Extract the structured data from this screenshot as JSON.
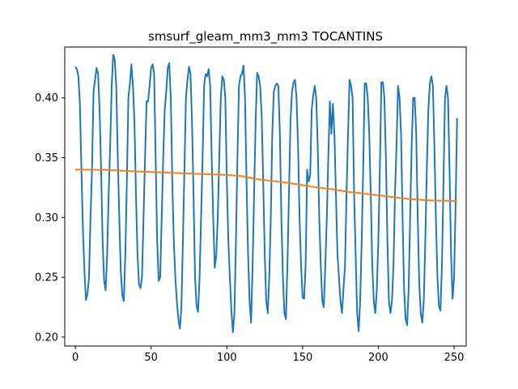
{
  "chart_data": {
    "type": "line",
    "title": "smsurf_gleam_mm3_mm3 TOCANTINS",
    "xlabel": "",
    "ylabel": "",
    "xlim": [
      -7,
      258
    ],
    "ylim": [
      0.1925,
      0.4425
    ],
    "x_ticks": [
      0,
      50,
      100,
      150,
      200,
      250
    ],
    "x_tick_labels": [
      "0",
      "50",
      "100",
      "150",
      "200",
      "250"
    ],
    "y_ticks": [
      0.2,
      0.25,
      0.3,
      0.35,
      0.4
    ],
    "y_tick_labels": [
      "0.20",
      "0.25",
      "0.30",
      "0.35",
      "0.40"
    ],
    "grid": false,
    "series": [
      {
        "color": "#1f77b4",
        "points": [
          [
            0,
            0.426
          ],
          [
            1,
            0.424
          ],
          [
            2,
            0.418
          ],
          [
            3,
            0.395
          ],
          [
            4,
            0.34
          ],
          [
            5,
            0.29
          ],
          [
            6,
            0.255
          ],
          [
            7,
            0.231
          ],
          [
            8,
            0.236
          ],
          [
            9,
            0.25
          ],
          [
            10,
            0.3
          ],
          [
            11,
            0.34
          ],
          [
            12,
            0.405
          ],
          [
            13,
            0.415
          ],
          [
            14,
            0.425
          ],
          [
            15,
            0.42
          ],
          [
            16,
            0.39
          ],
          [
            17,
            0.34
          ],
          [
            18,
            0.28
          ],
          [
            19,
            0.247
          ],
          [
            20,
            0.239
          ],
          [
            21,
            0.27
          ],
          [
            22,
            0.32
          ],
          [
            23,
            0.36
          ],
          [
            24,
            0.41
          ],
          [
            25,
            0.436
          ],
          [
            26,
            0.432
          ],
          [
            27,
            0.41
          ],
          [
            28,
            0.35
          ],
          [
            29,
            0.3
          ],
          [
            30,
            0.255
          ],
          [
            31,
            0.235
          ],
          [
            32,
            0.23
          ],
          [
            33,
            0.27
          ],
          [
            34,
            0.33
          ],
          [
            35,
            0.4
          ],
          [
            36,
            0.412
          ],
          [
            37,
            0.428
          ],
          [
            38,
            0.41
          ],
          [
            39,
            0.38
          ],
          [
            40,
            0.32
          ],
          [
            41,
            0.27
          ],
          [
            42,
            0.244
          ],
          [
            43,
            0.241
          ],
          [
            44,
            0.25
          ],
          [
            45,
            0.3
          ],
          [
            46,
            0.35
          ],
          [
            47,
            0.397
          ],
          [
            48,
            0.397
          ],
          [
            49,
            0.41
          ],
          [
            50,
            0.425
          ],
          [
            51,
            0.428
          ],
          [
            52,
            0.42
          ],
          [
            53,
            0.35
          ],
          [
            54,
            0.28
          ],
          [
            55,
            0.247
          ],
          [
            56,
            0.25
          ],
          [
            57,
            0.3
          ],
          [
            58,
            0.35
          ],
          [
            59,
            0.39
          ],
          [
            60,
            0.405
          ],
          [
            61,
            0.425
          ],
          [
            62,
            0.429
          ],
          [
            63,
            0.4
          ],
          [
            64,
            0.33
          ],
          [
            65,
            0.28
          ],
          [
            66,
            0.25
          ],
          [
            67,
            0.23
          ],
          [
            68,
            0.215
          ],
          [
            69,
            0.207
          ],
          [
            70,
            0.225
          ],
          [
            71,
            0.28
          ],
          [
            72,
            0.34
          ],
          [
            73,
            0.4
          ],
          [
            74,
            0.415
          ],
          [
            75,
            0.426
          ],
          [
            76,
            0.42
          ],
          [
            77,
            0.38
          ],
          [
            78,
            0.32
          ],
          [
            79,
            0.25
          ],
          [
            80,
            0.226
          ],
          [
            81,
            0.221
          ],
          [
            82,
            0.25
          ],
          [
            83,
            0.3
          ],
          [
            84,
            0.35
          ],
          [
            85,
            0.41
          ],
          [
            86,
            0.42
          ],
          [
            87,
            0.418
          ],
          [
            88,
            0.424
          ],
          [
            89,
            0.41
          ],
          [
            90,
            0.35
          ],
          [
            91,
            0.3
          ],
          [
            92,
            0.258
          ],
          [
            93,
            0.268
          ],
          [
            94,
            0.3
          ],
          [
            95,
            0.35
          ],
          [
            96,
            0.4
          ],
          [
            97,
            0.418
          ],
          [
            98,
            0.415
          ],
          [
            99,
            0.4
          ],
          [
            100,
            0.33
          ],
          [
            101,
            0.28
          ],
          [
            102,
            0.25
          ],
          [
            103,
            0.222
          ],
          [
            104,
            0.204
          ],
          [
            105,
            0.22
          ],
          [
            106,
            0.28
          ],
          [
            107,
            0.35
          ],
          [
            108,
            0.41
          ],
          [
            109,
            0.418
          ],
          [
            110,
            0.42
          ],
          [
            111,
            0.427
          ],
          [
            112,
            0.4
          ],
          [
            113,
            0.33
          ],
          [
            114,
            0.27
          ],
          [
            115,
            0.23
          ],
          [
            116,
            0.212
          ],
          [
            117,
            0.26
          ],
          [
            118,
            0.32
          ],
          [
            119,
            0.38
          ],
          [
            120,
            0.421
          ],
          [
            121,
            0.418
          ],
          [
            122,
            0.41
          ],
          [
            123,
            0.385
          ],
          [
            124,
            0.33
          ],
          [
            125,
            0.27
          ],
          [
            126,
            0.23
          ],
          [
            127,
            0.22
          ],
          [
            128,
            0.25
          ],
          [
            129,
            0.3
          ],
          [
            130,
            0.37
          ],
          [
            131,
            0.405
          ],
          [
            132,
            0.41
          ],
          [
            133,
            0.412
          ],
          [
            134,
            0.41
          ],
          [
            135,
            0.37
          ],
          [
            136,
            0.3
          ],
          [
            137,
            0.25
          ],
          [
            138,
            0.22
          ],
          [
            139,
            0.215
          ],
          [
            140,
            0.26
          ],
          [
            141,
            0.32
          ],
          [
            142,
            0.38
          ],
          [
            143,
            0.405
          ],
          [
            144,
            0.413
          ],
          [
            145,
            0.415
          ],
          [
            146,
            0.4
          ],
          [
            147,
            0.36
          ],
          [
            148,
            0.3
          ],
          [
            149,
            0.26
          ],
          [
            150,
            0.233
          ],
          [
            151,
            0.232
          ],
          [
            152,
            0.26
          ],
          [
            153,
            0.34
          ],
          [
            154,
            0.33
          ],
          [
            155,
            0.335
          ],
          [
            156,
            0.39
          ],
          [
            157,
            0.402
          ],
          [
            158,
            0.41
          ],
          [
            159,
            0.4
          ],
          [
            160,
            0.36
          ],
          [
            161,
            0.3
          ],
          [
            162,
            0.26
          ],
          [
            163,
            0.23
          ],
          [
            164,
            0.225
          ],
          [
            165,
            0.26
          ],
          [
            166,
            0.3
          ],
          [
            167,
            0.352
          ],
          [
            168,
            0.397
          ],
          [
            169,
            0.37
          ],
          [
            170,
            0.395
          ],
          [
            171,
            0.37
          ],
          [
            172,
            0.32
          ],
          [
            173,
            0.27
          ],
          [
            174,
            0.25
          ],
          [
            175,
            0.23
          ],
          [
            176,
            0.22
          ],
          [
            177,
            0.24
          ],
          [
            178,
            0.26
          ],
          [
            179,
            0.32
          ],
          [
            180,
            0.37
          ],
          [
            181,
            0.415
          ],
          [
            182,
            0.41
          ],
          [
            183,
            0.4
          ],
          [
            184,
            0.32
          ],
          [
            185,
            0.27
          ],
          [
            186,
            0.22
          ],
          [
            187,
            0.205
          ],
          [
            188,
            0.23
          ],
          [
            189,
            0.28
          ],
          [
            190,
            0.34
          ],
          [
            191,
            0.412
          ],
          [
            192,
            0.412
          ],
          [
            193,
            0.4
          ],
          [
            194,
            0.37
          ],
          [
            195,
            0.32
          ],
          [
            196,
            0.26
          ],
          [
            197,
            0.23
          ],
          [
            198,
            0.22
          ],
          [
            199,
            0.24
          ],
          [
            200,
            0.28
          ],
          [
            201,
            0.34
          ],
          [
            202,
            0.413
          ],
          [
            203,
            0.413
          ],
          [
            204,
            0.4
          ],
          [
            205,
            0.35
          ],
          [
            206,
            0.28
          ],
          [
            207,
            0.23
          ],
          [
            208,
            0.22
          ],
          [
            209,
            0.23
          ],
          [
            210,
            0.26
          ],
          [
            211,
            0.32
          ],
          [
            212,
            0.36
          ],
          [
            213,
            0.41
          ],
          [
            214,
            0.4
          ],
          [
            215,
            0.37
          ],
          [
            216,
            0.3
          ],
          [
            217,
            0.24
          ],
          [
            218,
            0.215
          ],
          [
            219,
            0.21
          ],
          [
            220,
            0.24
          ],
          [
            221,
            0.3
          ],
          [
            222,
            0.36
          ],
          [
            223,
            0.4
          ],
          [
            224,
            0.4
          ],
          [
            225,
            0.37
          ],
          [
            226,
            0.3
          ],
          [
            227,
            0.245
          ],
          [
            228,
            0.22
          ],
          [
            229,
            0.212
          ],
          [
            230,
            0.23
          ],
          [
            231,
            0.28
          ],
          [
            232,
            0.34
          ],
          [
            233,
            0.39
          ],
          [
            234,
            0.412
          ],
          [
            235,
            0.418
          ],
          [
            236,
            0.41
          ],
          [
            237,
            0.36
          ],
          [
            238,
            0.3
          ],
          [
            239,
            0.25
          ],
          [
            240,
            0.226
          ],
          [
            241,
            0.222
          ],
          [
            242,
            0.26
          ],
          [
            243,
            0.33
          ],
          [
            244,
            0.4
          ],
          [
            245,
            0.41
          ],
          [
            246,
            0.4
          ],
          [
            247,
            0.34
          ],
          [
            248,
            0.27
          ],
          [
            249,
            0.232
          ],
          [
            250,
            0.25
          ],
          [
            251,
            0.31
          ],
          [
            252,
            0.383
          ]
        ]
      },
      {
        "color": "#ff7f0e",
        "points": [
          [
            0,
            0.34
          ],
          [
            20,
            0.3398
          ],
          [
            40,
            0.3385
          ],
          [
            60,
            0.3375
          ],
          [
            80,
            0.3365
          ],
          [
            100,
            0.3355
          ],
          [
            110,
            0.3345
          ],
          [
            120,
            0.332
          ],
          [
            130,
            0.3305
          ],
          [
            140,
            0.329
          ],
          [
            150,
            0.327
          ],
          [
            160,
            0.325
          ],
          [
            170,
            0.3235
          ],
          [
            180,
            0.3215
          ],
          [
            190,
            0.32
          ],
          [
            200,
            0.3185
          ],
          [
            210,
            0.317
          ],
          [
            220,
            0.3155
          ],
          [
            230,
            0.3145
          ],
          [
            240,
            0.314
          ],
          [
            250,
            0.3138
          ],
          [
            252,
            0.3138
          ]
        ]
      }
    ]
  }
}
